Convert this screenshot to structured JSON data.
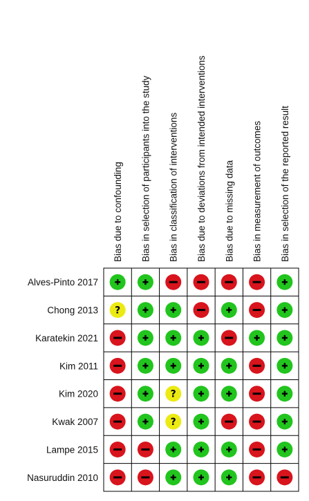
{
  "chart_data": {
    "type": "table",
    "columns": [
      "Bias due to confounding",
      "Bias in selection of participants into the study",
      "Bias in classification of interventions",
      "Bias due to deviations from intended interventions",
      "Bias due to missing data",
      "Bias in measurement of outcomes",
      "Bias in selection of the reported result"
    ],
    "rows": [
      {
        "study": "Alves-Pinto 2017",
        "judgements": [
          "low",
          "low",
          "high",
          "high",
          "high",
          "high",
          "low"
        ]
      },
      {
        "study": "Chong 2013",
        "judgements": [
          "unclear",
          "low",
          "low",
          "high",
          "low",
          "high",
          "low"
        ]
      },
      {
        "study": "Karatekin 2021",
        "judgements": [
          "high",
          "low",
          "low",
          "low",
          "high",
          "low",
          "low"
        ]
      },
      {
        "study": "Kim 2011",
        "judgements": [
          "high",
          "low",
          "low",
          "low",
          "low",
          "high",
          "low"
        ]
      },
      {
        "study": "Kim 2020",
        "judgements": [
          "high",
          "low",
          "unclear",
          "low",
          "low",
          "high",
          "low"
        ]
      },
      {
        "study": "Kwak 2007",
        "judgements": [
          "high",
          "low",
          "unclear",
          "low",
          "high",
          "high",
          "low"
        ]
      },
      {
        "study": "Lampe 2015",
        "judgements": [
          "high",
          "high",
          "low",
          "low",
          "low",
          "high",
          "low"
        ]
      },
      {
        "study": "Nasuruddin 2010",
        "judgements": [
          "high",
          "high",
          "low",
          "low",
          "low",
          "high",
          "high"
        ]
      }
    ],
    "symbols": {
      "low": "+",
      "high": "−",
      "unclear": "?"
    },
    "colors": {
      "low": "#22c41e",
      "high": "#d8141d",
      "unclear": "#ecea13",
      "grid": "#000000"
    }
  }
}
